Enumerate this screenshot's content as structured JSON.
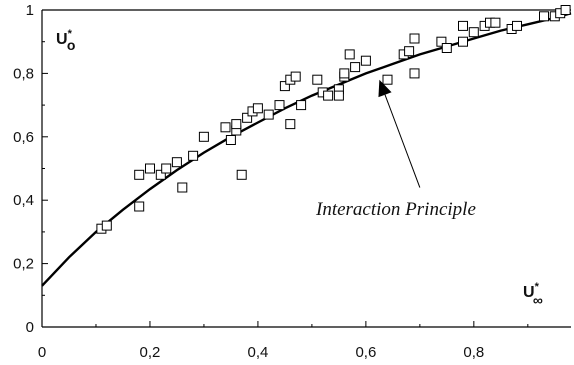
{
  "chart_data": {
    "type": "scatter",
    "xlim": [
      0,
      0.98
    ],
    "ylim": [
      0,
      1
    ],
    "x_ticks": [
      "0",
      "0,2",
      "0,4",
      "0,6",
      "0,8"
    ],
    "x_tick_values": [
      0,
      0.2,
      0.4,
      0.6,
      0.8
    ],
    "y_ticks": [
      "0",
      "0,2",
      "0,4",
      "0,6",
      "0,8",
      "1"
    ],
    "y_tick_values": [
      0,
      0.2,
      0.4,
      0.6,
      0.8,
      1
    ],
    "ylabel": {
      "main": "U",
      "sup": "*",
      "sub": "o"
    },
    "xlabel": {
      "main": "U",
      "sup": "*",
      "sub": "∞"
    },
    "grid": false,
    "legend": "none",
    "annotation": {
      "text": "Interaction Principle",
      "arrow_from": [
        0.7,
        0.44
      ],
      "arrow_to": [
        0.625,
        0.78
      ]
    },
    "curve": {
      "x": [
        0.0,
        0.05,
        0.1,
        0.15,
        0.2,
        0.25,
        0.3,
        0.35,
        0.4,
        0.45,
        0.5,
        0.55,
        0.6,
        0.65,
        0.7,
        0.75,
        0.8,
        0.85,
        0.9,
        0.95,
        0.98
      ],
      "y": [
        0.13,
        0.22,
        0.3,
        0.37,
        0.435,
        0.495,
        0.55,
        0.6,
        0.645,
        0.69,
        0.73,
        0.765,
        0.8,
        0.83,
        0.86,
        0.885,
        0.91,
        0.935,
        0.955,
        0.975,
        0.99
      ]
    },
    "points": {
      "x": [
        0.11,
        0.12,
        0.18,
        0.18,
        0.2,
        0.22,
        0.23,
        0.25,
        0.26,
        0.28,
        0.3,
        0.34,
        0.35,
        0.36,
        0.36,
        0.37,
        0.38,
        0.39,
        0.4,
        0.42,
        0.44,
        0.45,
        0.46,
        0.46,
        0.47,
        0.48,
        0.51,
        0.52,
        0.53,
        0.55,
        0.55,
        0.56,
        0.56,
        0.57,
        0.58,
        0.6,
        0.64,
        0.67,
        0.68,
        0.69,
        0.69,
        0.74,
        0.75,
        0.78,
        0.78,
        0.8,
        0.82,
        0.83,
        0.84,
        0.87,
        0.88,
        0.93,
        0.95,
        0.96,
        0.97
      ],
      "y": [
        0.31,
        0.32,
        0.38,
        0.48,
        0.5,
        0.48,
        0.5,
        0.52,
        0.44,
        0.54,
        0.6,
        0.63,
        0.59,
        0.62,
        0.64,
        0.48,
        0.66,
        0.68,
        0.69,
        0.67,
        0.7,
        0.76,
        0.64,
        0.78,
        0.79,
        0.7,
        0.78,
        0.74,
        0.73,
        0.75,
        0.73,
        0.79,
        0.8,
        0.86,
        0.82,
        0.84,
        0.78,
        0.86,
        0.87,
        0.91,
        0.8,
        0.9,
        0.88,
        0.95,
        0.9,
        0.93,
        0.95,
        0.96,
        0.96,
        0.94,
        0.95,
        0.98,
        0.98,
        0.99,
        1.0
      ]
    }
  }
}
